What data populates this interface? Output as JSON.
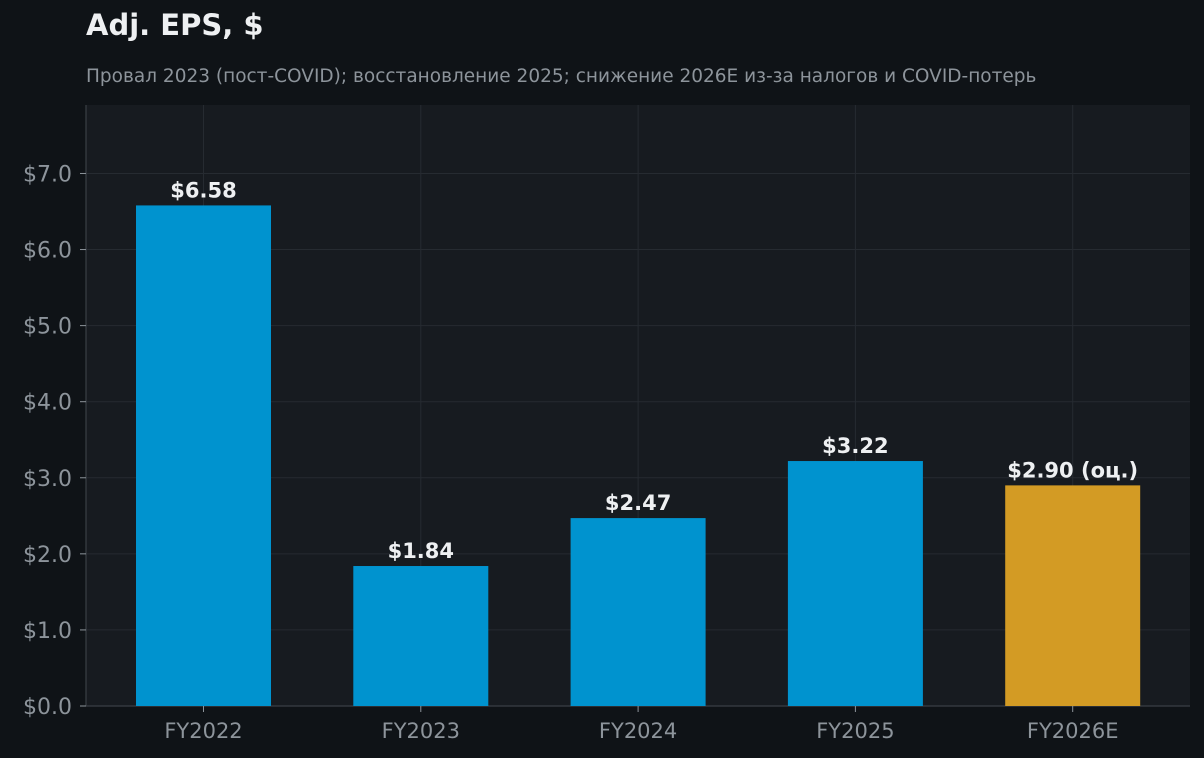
{
  "chart_data": {
    "type": "bar",
    "title": "Adj. EPS, $",
    "subtitle": "Провал 2023 (пост-COVID); восстановление 2025; снижение 2026E из-за налогов и COVID-потерь",
    "xlabel": "",
    "ylabel": "",
    "categories": [
      "FY2022",
      "FY2023",
      "FY2024",
      "FY2025",
      "FY2026E"
    ],
    "values": [
      6.58,
      1.84,
      2.47,
      3.22,
      2.9
    ],
    "data_labels": [
      "$6.58",
      "$1.84",
      "$2.47",
      "$3.22",
      "$2.90 (оц.)"
    ],
    "estimated": [
      false,
      false,
      false,
      false,
      true
    ],
    "ylim": [
      0,
      7.9
    ],
    "yticks": [
      0,
      1,
      2,
      3,
      4,
      5,
      6,
      7
    ],
    "ytick_labels": [
      "$0.0",
      "$1.0",
      "$2.0",
      "$3.0",
      "$4.0",
      "$5.0",
      "$6.0",
      "$7.0"
    ],
    "grid": true,
    "legend": "none",
    "colors": {
      "actual": "#0093cf",
      "estimate": "#d39b24",
      "background": "#0f1317",
      "plot_background": "#171b20",
      "grid": "#262b31",
      "axis": "#3a3f45",
      "tick_text": "#8d949b",
      "label_text": "#eef0f2"
    }
  }
}
